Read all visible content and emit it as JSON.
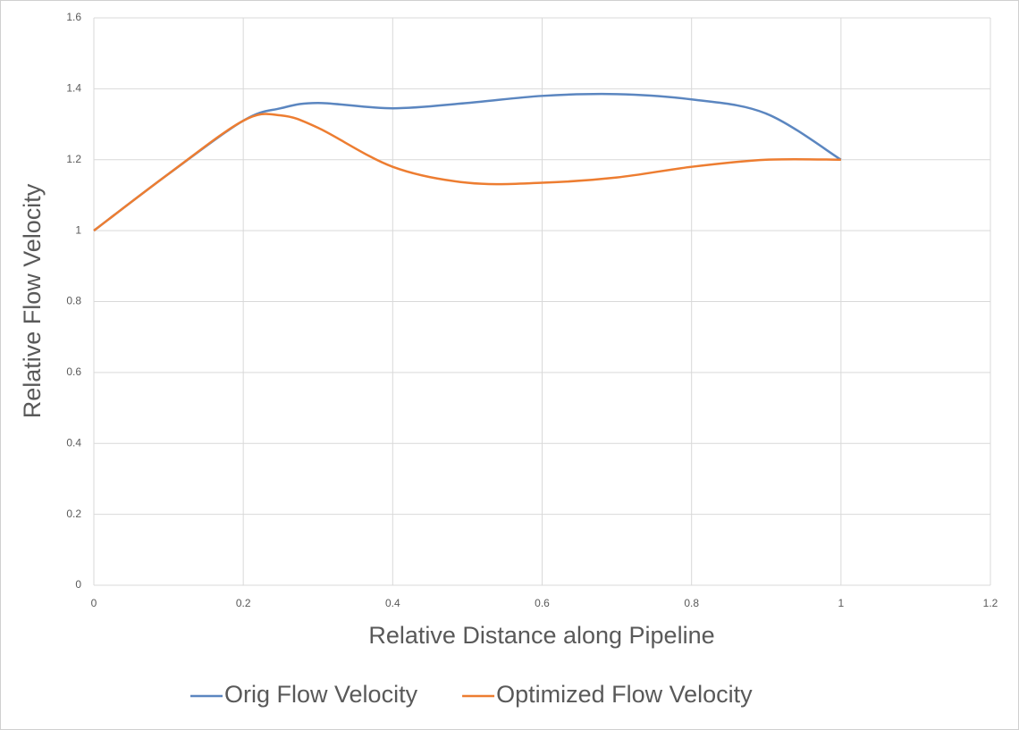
{
  "chart_data": {
    "type": "line",
    "x_label": "Relative Distance along Pipeline",
    "y_label": "Relative Flow Velocity",
    "x": [
      0,
      0.1,
      0.2,
      0.25,
      0.3,
      0.4,
      0.5,
      0.6,
      0.7,
      0.8,
      0.9,
      1.0
    ],
    "series": [
      {
        "name": "Orig Flow Velocity",
        "color": "#5b86c0",
        "values": [
          1.0,
          1.16,
          1.31,
          1.345,
          1.36,
          1.345,
          1.36,
          1.38,
          1.385,
          1.37,
          1.33,
          1.2
        ]
      },
      {
        "name": "Optimized Flow Velocity",
        "color": "#ed7d31",
        "values": [
          1.0,
          1.16,
          1.31,
          1.325,
          1.29,
          1.18,
          1.135,
          1.135,
          1.15,
          1.18,
          1.2,
          1.2
        ]
      }
    ],
    "xlim": [
      0,
      1.2
    ],
    "xticks": [
      0,
      0.2,
      0.4,
      0.6,
      0.8,
      1,
      1.2
    ],
    "ylim": [
      0,
      1.6
    ],
    "yticks": [
      0,
      0.2,
      0.4,
      0.6,
      0.8,
      1,
      1.2,
      1.4,
      1.6
    ],
    "grid": true,
    "legend": "bottom"
  }
}
